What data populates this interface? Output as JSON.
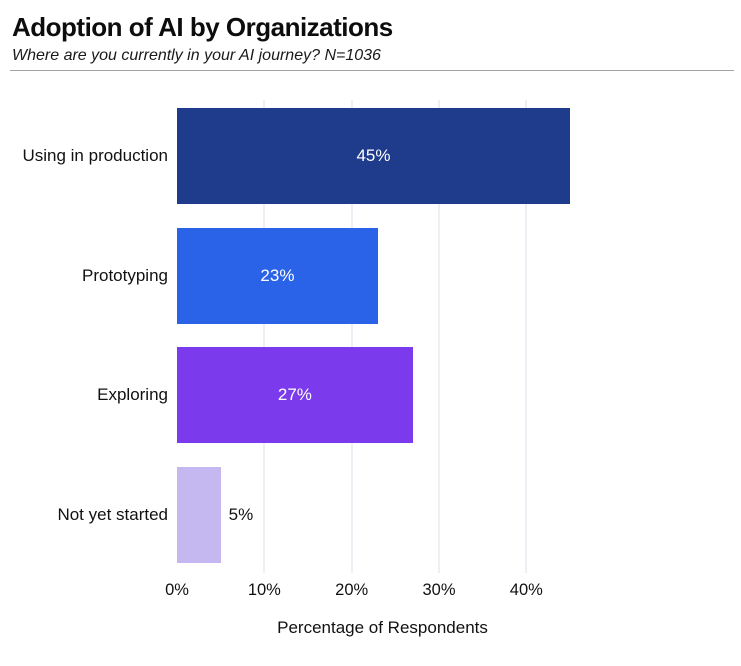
{
  "header": {
    "title": "Adoption of AI by Organizations",
    "subtitle": "Where are you currently in your AI journey? N=1036"
  },
  "chart_data": {
    "type": "bar",
    "orientation": "horizontal",
    "title": "Adoption of AI by Organizations",
    "subtitle": "Where are you currently in your AI journey? N=1036",
    "categories": [
      "Using in production",
      "Prototyping",
      "Exploring",
      "Not yet started"
    ],
    "values": [
      45,
      23,
      27,
      5
    ],
    "value_labels": [
      "45%",
      "23%",
      "27%",
      "5%"
    ],
    "label_inside": [
      true,
      true,
      true,
      false
    ],
    "bar_colors": [
      "#1f3b8c",
      "#2a63e8",
      "#7b3aec",
      "#c5b8f0"
    ],
    "xlabel": "Percentage of Respondents",
    "ylabel": "",
    "x_ticks": [
      0,
      10,
      20,
      30,
      40
    ],
    "x_tick_labels": [
      "0%",
      "10%",
      "20%",
      "30%",
      "40%"
    ],
    "xlim": [
      0,
      46
    ],
    "grid": "vertical-light",
    "legend": "none",
    "colors": {
      "background": "#ffffff",
      "text": "#111111",
      "gridline": "#efeef4",
      "divider": "#a3a3a3",
      "value_label_inside": "#ffffff",
      "value_label_outside": "#111111"
    }
  }
}
